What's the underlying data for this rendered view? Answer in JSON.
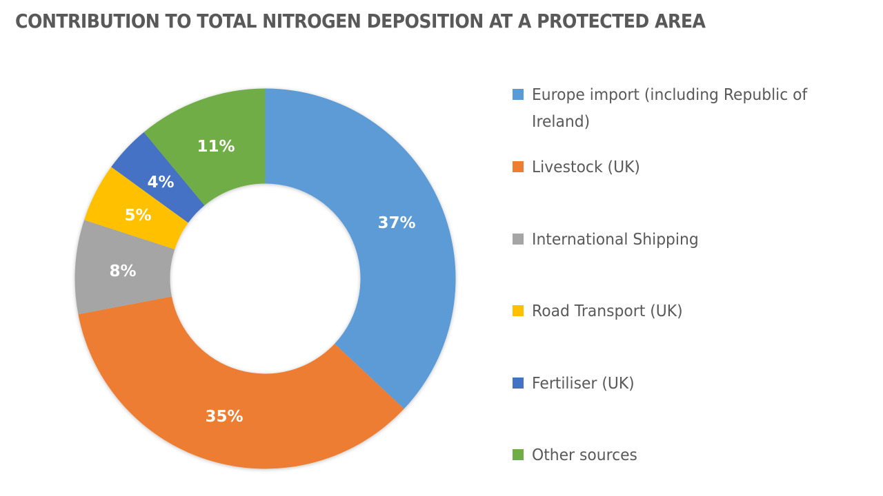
{
  "chart_data": {
    "type": "pie",
    "subtype": "donut",
    "title": "CONTRIBUTION TO TOTAL NITROGEN DEPOSITION AT A PROTECTED AREA",
    "categories": [
      "Europe import (including Republic of Ireland)",
      "Livestock (UK)",
      "International Shipping",
      "Road Transport (UK)",
      "Fertiliser (UK)",
      "Other sources"
    ],
    "values": [
      37,
      35,
      8,
      5,
      4,
      11
    ],
    "unit": "%",
    "data_labels": [
      "37%",
      "35%",
      "8%",
      "5%",
      "4%",
      "11%"
    ],
    "colors": [
      "#5B9BD5",
      "#ED7D31",
      "#A5A5A5",
      "#FFC000",
      "#4472C4",
      "#70AD47"
    ],
    "start_angle_deg": 0,
    "direction": "clockwise",
    "hole_ratio": 0.5,
    "legend_position": "right"
  },
  "title": "CONTRIBUTION TO TOTAL NITROGEN DEPOSITION AT A PROTECTED AREA",
  "legend": {
    "items": [
      {
        "label": "Europe import (including Republic of Ireland)",
        "color": "#5B9BD5"
      },
      {
        "label": "Livestock (UK)",
        "color": "#ED7D31"
      },
      {
        "label": "International Shipping",
        "color": "#A5A5A5"
      },
      {
        "label": "Road Transport (UK)",
        "color": "#FFC000"
      },
      {
        "label": "Fertiliser (UK)",
        "color": "#4472C4"
      },
      {
        "label": "Other sources",
        "color": "#70AD47"
      }
    ]
  },
  "labels": {
    "europe": "37%",
    "livestock": "35%",
    "shipping": "8%",
    "road": "5%",
    "fertiliser": "4%",
    "other": "11%"
  }
}
